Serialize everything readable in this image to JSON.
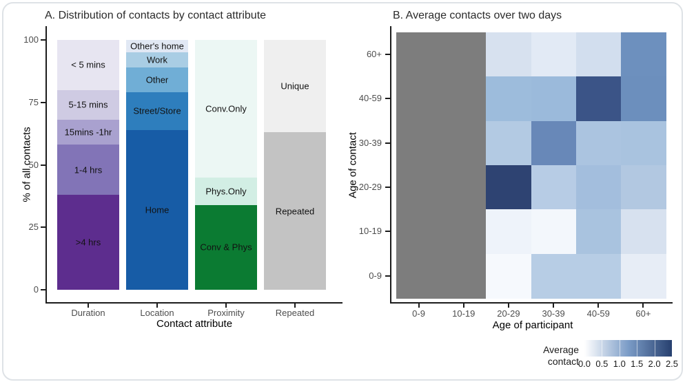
{
  "chart_data": [
    {
      "type": "bar",
      "stacked": true,
      "title": "A. Distribution of contacts by contact attribute",
      "xlabel": "Contact attribute",
      "ylabel": "% of all contacts",
      "ylim": [
        0,
        100
      ],
      "yticks": [
        "0",
        "25",
        "50",
        "75",
        "100"
      ],
      "ytick_values": [
        0,
        25,
        50,
        75,
        100
      ],
      "categories": [
        "Duration",
        "Location",
        "Proximity",
        "Repeated"
      ],
      "bars": [
        {
          "category": "Duration",
          "segments": [
            {
              "label": ">4 hrs",
              "value": 38,
              "color": "#5d2d8e"
            },
            {
              "label": "1-4 hrs",
              "value": 20,
              "color": "#8274b7"
            },
            {
              "label": "15mins -1hr",
              "value": 10,
              "color": "#a9a1cf"
            },
            {
              "label": "5-15 mins",
              "value": 12,
              "color": "#cfcbe3"
            },
            {
              "label": "< 5 mins",
              "value": 20,
              "color": "#e7e5f1"
            }
          ]
        },
        {
          "category": "Location",
          "segments": [
            {
              "label": "Home",
              "value": 64,
              "color": "#175ca6"
            },
            {
              "label": "Street/Store",
              "value": 15,
              "color": "#2e7ebd"
            },
            {
              "label": "Other",
              "value": 10,
              "color": "#70aed6"
            },
            {
              "label": "Work",
              "value": 6,
              "color": "#a9cde4"
            },
            {
              "label": "Other's home",
              "value": 5,
              "color": "#e1e8f4"
            }
          ]
        },
        {
          "category": "Proximity",
          "segments": [
            {
              "label": "Conv & Phys",
              "value": 34,
              "color": "#0b7b32"
            },
            {
              "label": "Phys.Only",
              "value": 11,
              "color": "#d2eee4"
            },
            {
              "label": "Conv.Only",
              "value": 55,
              "color": "#ecf7f4"
            }
          ]
        },
        {
          "category": "Repeated",
          "segments": [
            {
              "label": "Repeated",
              "value": 63,
              "color": "#c3c3c3"
            },
            {
              "label": "Unique",
              "value": 37,
              "color": "#efefef"
            }
          ]
        }
      ]
    },
    {
      "type": "heatmap",
      "title": "B. Average contacts over two days",
      "xlabel": "Age of participant",
      "ylabel": "Age of contact",
      "x_categories": [
        "0-9",
        "10-19",
        "20-29",
        "30-39",
        "40-59",
        "60+"
      ],
      "y_categories_top_to_bottom": [
        "60+",
        "40-59",
        "30-39",
        "20-29",
        "10-19",
        "0-9"
      ],
      "na_color": "#7d7d7d",
      "rows_top_to_bottom": [
        {
          "y": "60+",
          "values": [
            null,
            null,
            0.5,
            0.35,
            0.55,
            1.4
          ],
          "colors": [
            "#7d7d7d",
            "#7d7d7d",
            "#d7e1ef",
            "#e2eaf5",
            "#d2deee",
            "#6d90be"
          ]
        },
        {
          "y": "40-59",
          "values": [
            null,
            null,
            1.0,
            1.0,
            2.2,
            1.4
          ],
          "colors": [
            "#7d7d7d",
            "#7d7d7d",
            "#9dbcdc",
            "#9bbadb",
            "#3b5487",
            "#6c8fbd"
          ]
        },
        {
          "y": "30-39",
          "values": [
            null,
            null,
            0.8,
            1.5,
            0.9,
            0.9
          ],
          "colors": [
            "#7d7d7d",
            "#7d7d7d",
            "#b3cae3",
            "#6888b8",
            "#abc4e0",
            "#a9c3df"
          ]
        },
        {
          "y": "20-29",
          "values": [
            null,
            null,
            2.4,
            0.75,
            0.95,
            0.85
          ],
          "colors": [
            "#7d7d7d",
            "#7d7d7d",
            "#2e4372",
            "#b7cce5",
            "#a3bedd",
            "#b2c8e1"
          ]
        },
        {
          "y": "10-19",
          "values": [
            null,
            null,
            0.15,
            0.1,
            0.9,
            0.5
          ],
          "colors": [
            "#7d7d7d",
            "#7d7d7d",
            "#eef3fa",
            "#f3f7fc",
            "#a9c3df",
            "#d7e1ef"
          ]
        },
        {
          "y": "0-9",
          "values": [
            null,
            null,
            0.07,
            0.75,
            0.75,
            0.3
          ],
          "colors": [
            "#7d7d7d",
            "#7d7d7d",
            "#f6f9fd",
            "#b7cde5",
            "#b7cde5",
            "#e7edf6"
          ]
        }
      ],
      "legend": {
        "title_line1": "Average",
        "title_line2": "contact",
        "tick_labels": [
          "0.0",
          "0.5",
          "1.0",
          "1.5",
          "2.0",
          "2.5"
        ],
        "gradient_start": "#ffffff",
        "gradient_mid": "#7b9cc7",
        "gradient_end": "#27406f"
      }
    }
  ]
}
